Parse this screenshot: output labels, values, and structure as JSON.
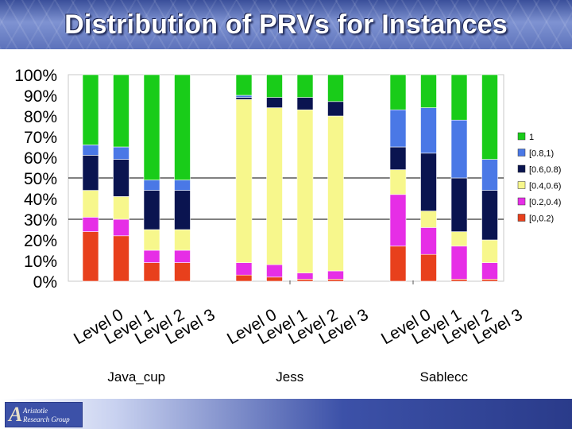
{
  "header": {
    "title": "Distribution of PRVs for Instances"
  },
  "logo": {
    "line1": "Aristotle",
    "line2": "Research Group"
  },
  "chart_data": {
    "type": "bar",
    "stacked": true,
    "percent": true,
    "yticks": [
      "0%",
      "10%",
      "20%",
      "30%",
      "40%",
      "50%",
      "60%",
      "70%",
      "80%",
      "90%",
      "100%"
    ],
    "ylim": [
      0,
      100
    ],
    "legend_position": "right",
    "series": [
      {
        "name": "[0,0.2)",
        "color": "#e8401c"
      },
      {
        "name": "[0.2,0.4)",
        "color": "#e62ee6"
      },
      {
        "name": "[0.4,0.6)",
        "color": "#f7f78c"
      },
      {
        "name": "[0.6,0.8)",
        "color": "#0a1450"
      },
      {
        "name": "[0.8,1)",
        "color": "#4a78e6"
      },
      {
        "name": "1",
        "color": "#19cc19"
      }
    ],
    "groups": [
      {
        "name": "Java_cup",
        "categories": [
          "Level 0",
          "Level 1",
          "Level 2",
          "Level 3"
        ],
        "values": [
          [
            24,
            7,
            13,
            17,
            5,
            34
          ],
          [
            22,
            8,
            11,
            18,
            6,
            35
          ],
          [
            9,
            6,
            10,
            19,
            5,
            51
          ],
          [
            9,
            6,
            10,
            19,
            5,
            51
          ]
        ]
      },
      {
        "name": "Jess",
        "categories": [
          "Level 0",
          "Level 1",
          "Level 2",
          "Level 3"
        ],
        "values": [
          [
            3,
            6,
            79,
            1,
            1,
            10
          ],
          [
            2,
            6,
            76,
            5,
            0,
            11
          ],
          [
            1,
            3,
            79,
            6,
            0,
            11
          ],
          [
            1,
            4,
            75,
            7,
            0,
            13
          ]
        ]
      },
      {
        "name": "Sablecc",
        "categories": [
          "Level 0",
          "Level 1",
          "Level 2",
          "Level 3"
        ],
        "values": [
          [
            17,
            25,
            12,
            11,
            18,
            17
          ],
          [
            13,
            13,
            8,
            28,
            22,
            16
          ],
          [
            1,
            16,
            7,
            26,
            28,
            22
          ],
          [
            1,
            8,
            11,
            24,
            15,
            41
          ]
        ]
      }
    ]
  }
}
